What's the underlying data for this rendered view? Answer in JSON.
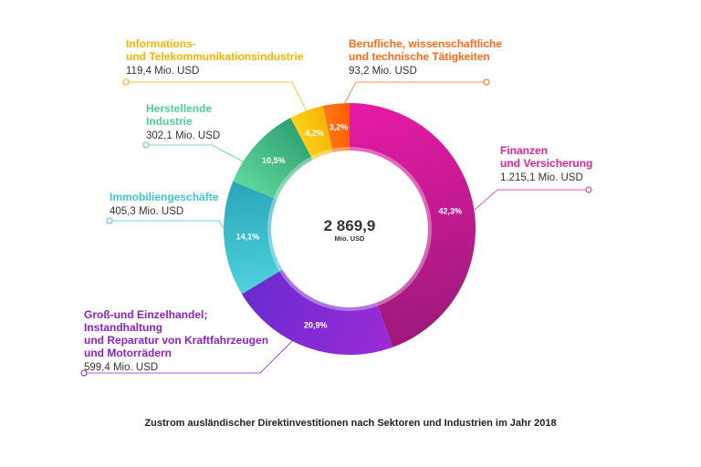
{
  "chart_data": {
    "type": "pie",
    "variant": "donut",
    "title": "Zustrom ausländischer Direktinvestitionen nach Sektoren und Industrien im Jahr 2018",
    "total": {
      "value": "2 869,9",
      "unit": "Mio. USD"
    },
    "slices": [
      {
        "name_lines": [
          "Finanzen",
          "und Versicherung"
        ],
        "value": 1215.1,
        "value_label": "1.215,1 Mio. USD",
        "percent": 42.3,
        "percent_label": "42,3%",
        "color": "#e81aa6",
        "color_dark": "#9b1a7a",
        "label_color": "#e0229b"
      },
      {
        "name_lines": [
          "Groß-und Einzelhandel;",
          "Instandhaltung",
          "und Reparatur von Kraftfahrzeugen",
          "und Motorrädern"
        ],
        "value": 599.4,
        "value_label": "599,4 Mio. USD",
        "percent": 20.9,
        "percent_label": "20,9%",
        "color": "#9b2bd6",
        "color_dark": "#6a2bd0",
        "label_color": "#8b22c9"
      },
      {
        "name_lines": [
          "Immobiliengeschäfte"
        ],
        "value": 405.3,
        "value_label": "405,3 Mio. USD",
        "percent": 14.1,
        "percent_label": "14,1%",
        "color": "#4fd3dd",
        "color_dark": "#2aa5b8",
        "label_color": "#3fc5d6"
      },
      {
        "name_lines": [
          "Herstellende",
          "Industrie"
        ],
        "value": 302.1,
        "value_label": "302,1 Mio. USD",
        "percent": 10.5,
        "percent_label": "10,5%",
        "color": "#5fd99a",
        "color_dark": "#2ea072",
        "label_color": "#4fcf94"
      },
      {
        "name_lines": [
          "Informations-",
          "und Telekommunikationsindustrie"
        ],
        "value": 119.4,
        "value_label": "119,4 Mio. USD",
        "percent": 4.2,
        "percent_label": "4,2%",
        "color": "#ffd21e",
        "color_dark": "#f4b400",
        "label_color": "#f6b400"
      },
      {
        "name_lines": [
          "Berufliche, wissenschaftliche",
          "und technische Tätigkeiten"
        ],
        "value": 93.2,
        "value_label": "93,2 Mio. USD",
        "percent": 3.2,
        "percent_label": "3,2%",
        "color": "#ff7a1a",
        "color_dark": "#ff5a00",
        "label_color": "#ff6a1a"
      }
    ]
  }
}
